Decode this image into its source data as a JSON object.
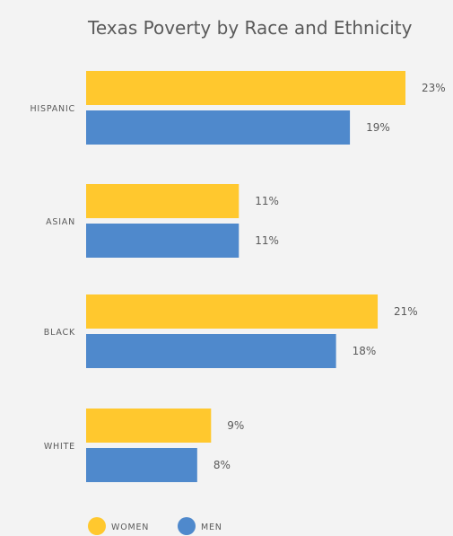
{
  "colors": {
    "background": "#f3f3f3",
    "women": "#ffc82e",
    "men": "#4f89cc",
    "text": "#5a5a5a"
  },
  "chart_data": {
    "type": "bar",
    "orientation": "horizontal",
    "title": "Texas Poverty by Race and Ethnicity",
    "categories": [
      "HISPANIC",
      "ASIAN",
      "BLACK",
      "WHITE"
    ],
    "series": [
      {
        "name": "WOMEN",
        "color": "#ffc82e",
        "values": [
          23,
          11,
          21,
          9
        ],
        "labels": [
          "23%",
          "11%",
          "21%",
          "9%"
        ]
      },
      {
        "name": "MEN",
        "color": "#4f89cc",
        "values": [
          19,
          11,
          18,
          8
        ],
        "labels": [
          "19%",
          "11%",
          "18%",
          "8%"
        ]
      }
    ],
    "unit": "%",
    "xlim": [
      0,
      23
    ],
    "grid": false,
    "legend_position": "bottom-left"
  }
}
